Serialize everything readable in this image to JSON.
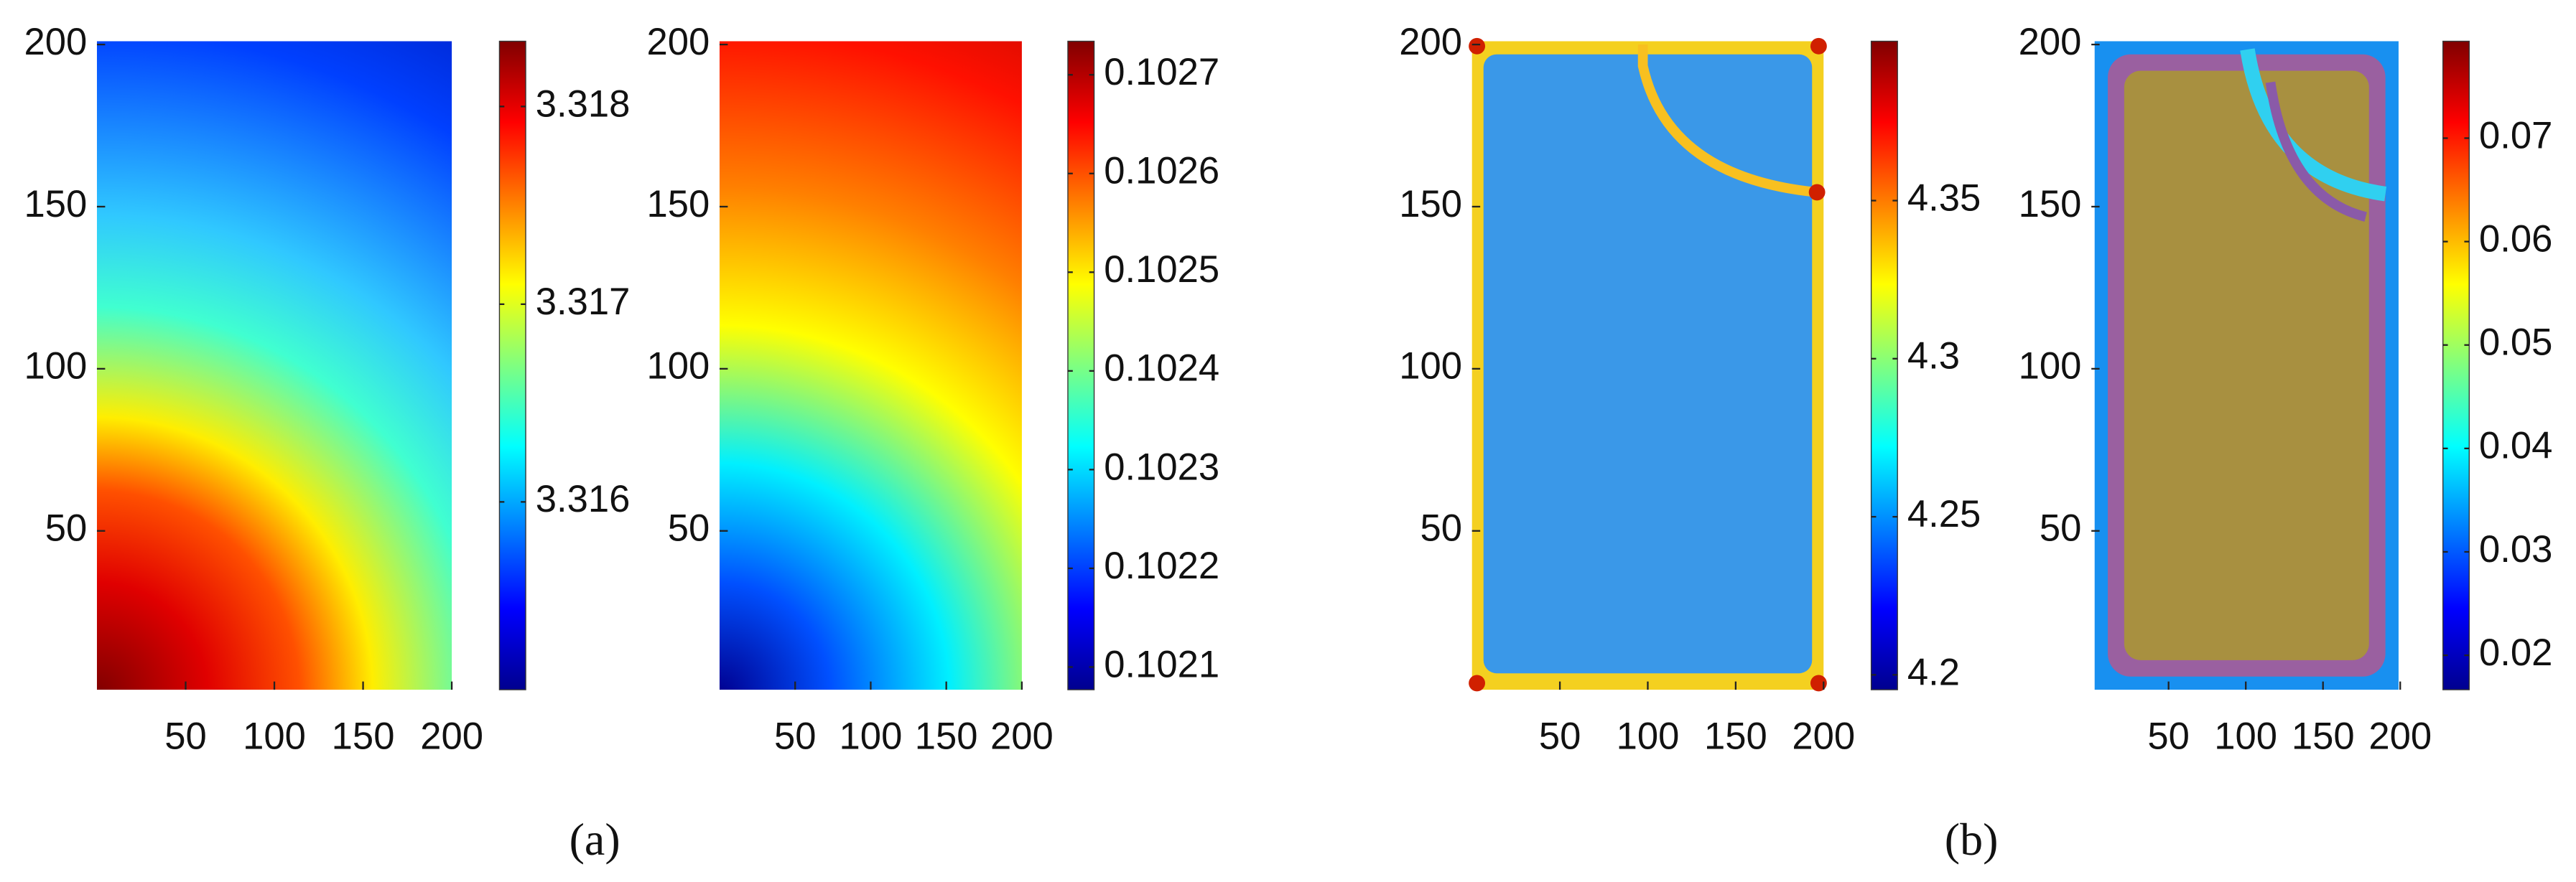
{
  "chart_data": [
    {
      "type": "heatmap",
      "xlim": [
        0,
        200
      ],
      "ylim": [
        0,
        200
      ],
      "xticks": [
        50,
        100,
        150,
        200
      ],
      "yticks": [
        50,
        100,
        150,
        200
      ],
      "colorbar": {
        "colormap": "jet",
        "lim": [
          3.31505,
          3.31833
        ],
        "ticks": [
          3.316,
          3.317,
          3.318
        ]
      }
    },
    {
      "type": "heatmap",
      "xlim": [
        0,
        200
      ],
      "ylim": [
        0,
        200
      ],
      "xticks": [
        50,
        100,
        150,
        200
      ],
      "yticks": [
        50,
        100,
        150,
        200
      ],
      "colorbar": {
        "colormap": "jet",
        "lim": [
          0.102077,
          0.102734
        ],
        "ticks": [
          0.1021,
          0.1022,
          0.1023,
          0.1024,
          0.1025,
          0.1026,
          0.1027
        ]
      }
    },
    {
      "type": "heatmap",
      "xlim": [
        0,
        200
      ],
      "ylim": [
        0,
        200
      ],
      "xticks": [
        50,
        100,
        150,
        200
      ],
      "yticks": [
        50,
        100,
        150,
        200
      ],
      "colorbar": {
        "colormap": "jet",
        "lim": [
          4.1953,
          4.4004
        ],
        "ticks": [
          4.2,
          4.25,
          4.3,
          4.35
        ]
      }
    },
    {
      "type": "heatmap",
      "xlim": [
        0,
        200
      ],
      "ylim": [
        0,
        200
      ],
      "xticks": [
        50,
        100,
        150,
        200
      ],
      "yticks": [
        50,
        100,
        150,
        200
      ],
      "colorbar": {
        "colormap": "jet",
        "lim": [
          0.01667,
          0.07937
        ],
        "ticks": [
          0.02,
          0.03,
          0.04,
          0.05,
          0.06,
          0.07
        ]
      }
    }
  ],
  "captions": [
    "(a)",
    "(b)"
  ]
}
